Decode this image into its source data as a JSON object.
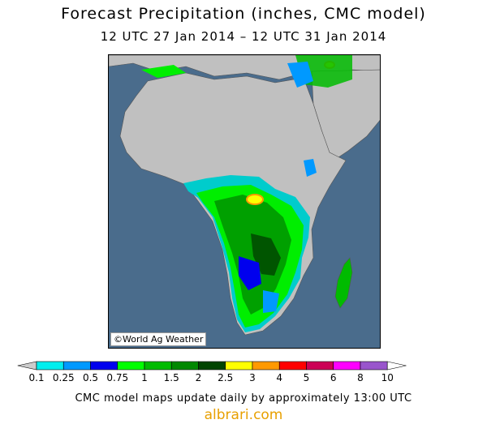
{
  "title": "Forecast Precipitation (inches, CMC model)",
  "subtitle": "12 UTC 27 Jan 2014 – 12 UTC 31 Jan 2014",
  "credit": "©World Ag Weather",
  "footer": "CMC model maps update daily by approximately 13:00 UTC",
  "site": "albrari.com",
  "legend": {
    "labels": [
      "0.1",
      "0.25",
      "0.5",
      "0.75",
      "1",
      "1.5",
      "2",
      "2.5",
      "3",
      "4",
      "5",
      "6",
      "8",
      "10"
    ],
    "colors": [
      "#cccccc",
      "#00eeee",
      "#0099ff",
      "#0000ee",
      "#00ff00",
      "#00bb00",
      "#008800",
      "#004400",
      "#ffff00",
      "#ff9900",
      "#ff0000",
      "#cc0055",
      "#ff00ff",
      "#9955cc",
      "#ffffff"
    ]
  },
  "colors": {
    "ocean": "#4a6c8c",
    "land": "#c0c0c0"
  }
}
